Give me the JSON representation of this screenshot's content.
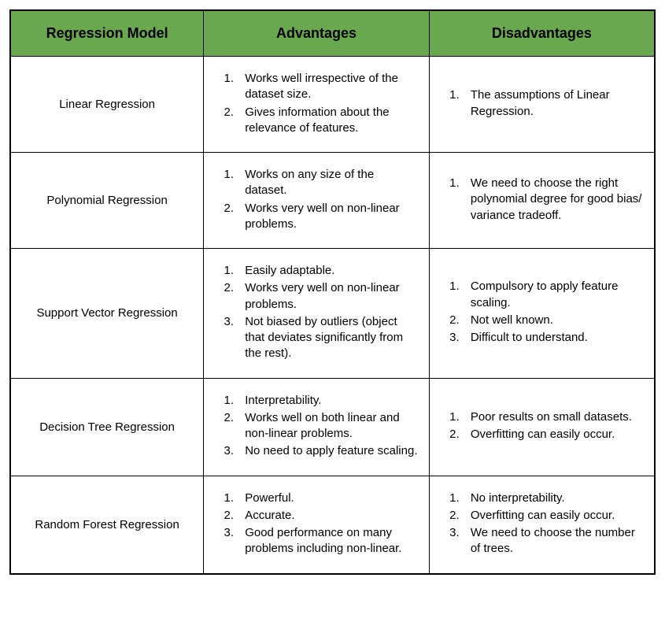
{
  "table": {
    "type": "table",
    "header_bg": "#6aa84f",
    "border_color": "#000000",
    "text_color": "#000000",
    "font_family": "Arial",
    "header_fontsize": 18,
    "cell_fontsize": 15,
    "column_widths_pct": [
      30,
      35,
      35
    ],
    "columns": [
      "Regression Model",
      "Advantages",
      "Disadvantages"
    ],
    "rows": [
      {
        "model": "Linear Regression",
        "advantages": [
          "Works well irrespective of the dataset size.",
          "Gives information about the relevance of features."
        ],
        "disadvantages": [
          "The assumptions of Linear Regression."
        ]
      },
      {
        "model": "Polynomial Regression",
        "advantages": [
          "Works on any size of the dataset.",
          "Works very well on non-linear problems."
        ],
        "disadvantages": [
          "We need to choose the right polynomial degree for good bias/ variance tradeoff."
        ]
      },
      {
        "model": "Support Vector Regression",
        "advantages": [
          "Easily adaptable.",
          "Works very well on non-linear problems.",
          "Not biased by outliers (object that deviates significantly from the rest)."
        ],
        "disadvantages": [
          "Compulsory to apply feature scaling.",
          "Not well known.",
          "Difficult to understand."
        ]
      },
      {
        "model": "Decision Tree Regression",
        "advantages": [
          "Interpretability.",
          "Works well on both linear and non-linear problems.",
          "No need to apply feature scaling."
        ],
        "disadvantages": [
          "Poor results on small datasets.",
          "Overfitting can easily occur."
        ]
      },
      {
        "model": "Random Forest Regression",
        "advantages": [
          "Powerful.",
          "Accurate.",
          "Good performance on many problems including non-linear."
        ],
        "disadvantages": [
          "No interpretability.",
          "Overfitting can easily occur.",
          "We need to choose the number of trees."
        ]
      }
    ]
  }
}
